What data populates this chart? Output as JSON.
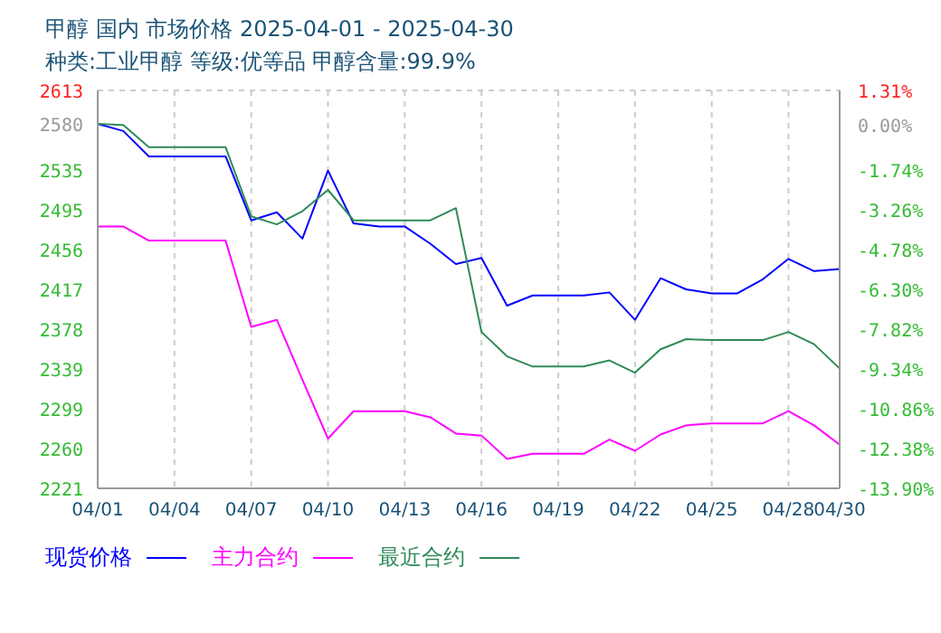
{
  "chart_data": {
    "type": "line",
    "title": "甲醇 国内 市场价格 2025-04-01 - 2025-04-30",
    "subtitle": "种类:工业甲醇 等级:优等品 甲醇含量:99.9%",
    "x": [
      "2025-04-01",
      "2025-04-02",
      "2025-04-03",
      "2025-04-04",
      "2025-04-05",
      "2025-04-06",
      "2025-04-07",
      "2025-04-08",
      "2025-04-09",
      "2025-04-10",
      "2025-04-11",
      "2025-04-12",
      "2025-04-13",
      "2025-04-14",
      "2025-04-15",
      "2025-04-16",
      "2025-04-17",
      "2025-04-18",
      "2025-04-19",
      "2025-04-20",
      "2025-04-21",
      "2025-04-22",
      "2025-04-23",
      "2025-04-24",
      "2025-04-25",
      "2025-04-26",
      "2025-04-27",
      "2025-04-28",
      "2025-04-29",
      "2025-04-30"
    ],
    "series": [
      {
        "name": "现货价格",
        "color": "#0000ff",
        "values": [
          2580,
          2573,
          2548,
          2548,
          2548,
          2548,
          2485,
          2493,
          2467,
          2534,
          2482,
          2479,
          2479,
          2462,
          2442,
          2448,
          2401,
          2411,
          2411,
          2411,
          2414,
          2387,
          2428,
          2417,
          2413,
          2413,
          2427,
          2447,
          2435,
          2437
        ]
      },
      {
        "name": "主力合约",
        "color": "#ff00ff",
        "values": [
          2479,
          2479,
          2465,
          2465,
          2465,
          2465,
          2380,
          2387,
          2328,
          2270,
          2297,
          2297,
          2297,
          2291,
          2275,
          2273,
          2250,
          2255,
          2255,
          2255,
          2269,
          2258,
          2274,
          2283,
          2285,
          2285,
          2285,
          2297,
          2283,
          2264
        ]
      },
      {
        "name": "最近合约",
        "color": "#2e8b57",
        "values": [
          2580,
          2579,
          2557,
          2557,
          2557,
          2557,
          2489,
          2481,
          2494,
          2515,
          2485,
          2485,
          2485,
          2485,
          2497,
          2375,
          2351,
          2341,
          2341,
          2341,
          2347,
          2335,
          2358,
          2368,
          2367,
          2367,
          2367,
          2375,
          2363,
          2339
        ]
      }
    ],
    "xlim": [
      "2025-04-01",
      "2025-04-30"
    ],
    "xticks": [
      {
        "value": "2025-04-01",
        "label": "04/01"
      },
      {
        "value": "2025-04-04",
        "label": "04/04"
      },
      {
        "value": "2025-04-07",
        "label": "04/07"
      },
      {
        "value": "2025-04-10",
        "label": "04/10"
      },
      {
        "value": "2025-04-13",
        "label": "04/13"
      },
      {
        "value": "2025-04-16",
        "label": "04/16"
      },
      {
        "value": "2025-04-19",
        "label": "04/19"
      },
      {
        "value": "2025-04-22",
        "label": "04/22"
      },
      {
        "value": "2025-04-25",
        "label": "04/25"
      },
      {
        "value": "2025-04-28",
        "label": "04/28"
      },
      {
        "value": "2025-04-30",
        "label": "04/30"
      }
    ],
    "ylim": [
      2221,
      2613
    ],
    "yticks": [
      2221,
      2260,
      2299,
      2339,
      2378,
      2417,
      2456,
      2495,
      2535,
      2580,
      2613
    ],
    "y2lim": [
      -13.9,
      1.31
    ],
    "y2ticks": [
      {
        "value": -13.9,
        "label": "-13.90%"
      },
      {
        "value": -12.38,
        "label": "-12.38%"
      },
      {
        "value": -10.86,
        "label": "-10.86%"
      },
      {
        "value": -9.34,
        "label": "-9.34%"
      },
      {
        "value": -7.82,
        "label": "-7.82%"
      },
      {
        "value": -6.3,
        "label": "-6.30%"
      },
      {
        "value": -4.78,
        "label": "-4.78%"
      },
      {
        "value": -3.26,
        "label": "-3.26%"
      },
      {
        "value": -1.74,
        "label": "-1.74%"
      },
      {
        "value": 0,
        "label": "0.00%"
      },
      {
        "value": 1.31,
        "label": "1.31%"
      }
    ],
    "grid": true,
    "legend": "bottom",
    "marker": "none",
    "line_style": "solid"
  }
}
